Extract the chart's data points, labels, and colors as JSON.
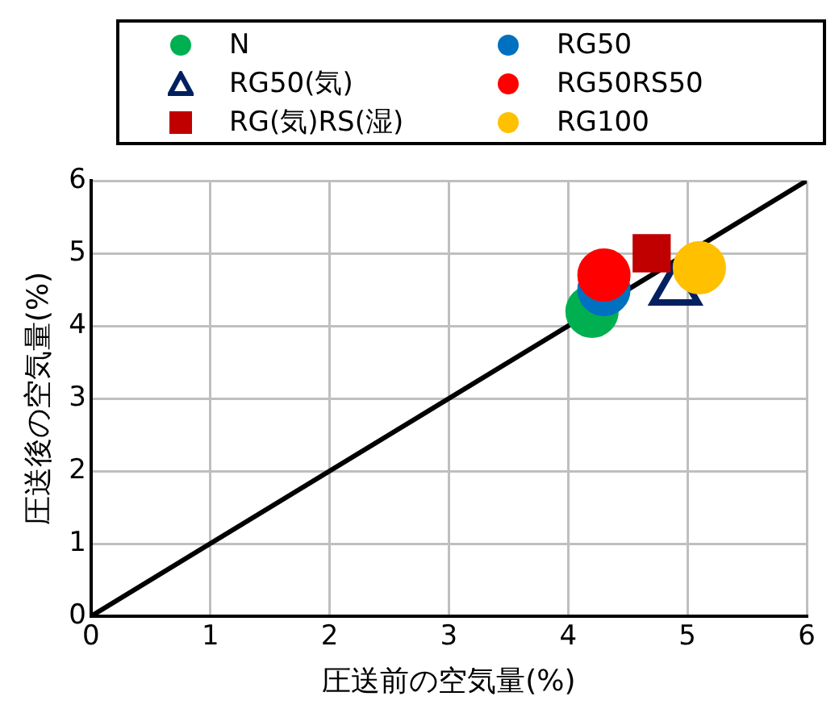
{
  "chart_data": {
    "type": "scatter",
    "xlabel": "圧送前の空気量(%)",
    "ylabel": "圧送後の空気量(%)",
    "xlim": [
      0,
      6
    ],
    "ylim": [
      0,
      6
    ],
    "xticks": [
      0,
      1,
      2,
      3,
      4,
      5,
      6
    ],
    "yticks": [
      0,
      1,
      2,
      3,
      4,
      5,
      6
    ],
    "grid": true,
    "legend": "top",
    "series": [
      {
        "type": "line",
        "x": [
          0,
          6
        ],
        "values": [
          0,
          6
        ],
        "color": "#000000",
        "marker": "none"
      },
      {
        "name": "N",
        "color": "#00b050",
        "marker": "circle",
        "x": [
          4.2
        ],
        "values": [
          4.2
        ]
      },
      {
        "name": "RG50",
        "color": "#0070c0",
        "marker": "circle",
        "x": [
          4.3
        ],
        "values": [
          4.5
        ]
      },
      {
        "name": "RG50(気)",
        "color": "#002060",
        "marker": "triangle",
        "x": [
          4.9
        ],
        "values": [
          4.5
        ]
      },
      {
        "name": "RG50RS50",
        "color": "#ff0000",
        "marker": "circle",
        "x": [
          4.3
        ],
        "values": [
          4.7
        ]
      },
      {
        "name": "RG(気)RS(湿)",
        "color": "#c00000",
        "marker": "square",
        "x": [
          4.7
        ],
        "values": [
          5.0
        ]
      },
      {
        "name": "RG100",
        "color": "#ffc000",
        "marker": "circle",
        "x": [
          5.1
        ],
        "values": [
          4.8
        ]
      }
    ]
  }
}
